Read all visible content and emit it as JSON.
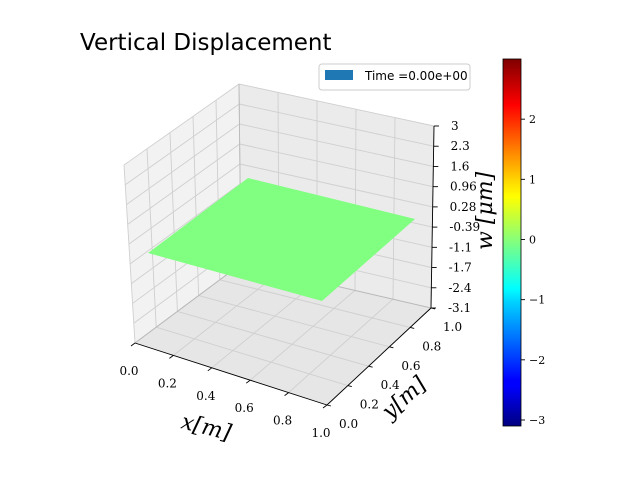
{
  "chart_data": {
    "type": "surface3d",
    "title": "Vertical Displacement",
    "xlabel": "x[m]",
    "ylabel": "y[m]",
    "zlabel": "w [μm]",
    "x_ticks": [
      "0.0",
      "0.2",
      "0.4",
      "0.6",
      "0.8",
      "1.0"
    ],
    "y_ticks": [
      "0.0",
      "0.2",
      "0.4",
      "0.6",
      "0.8",
      "1.0"
    ],
    "z_ticks": [
      "3",
      "2.3",
      "1.6",
      "0.96",
      "0.28",
      "-0.39",
      "-1.1",
      "-1.7",
      "-2.4",
      "-3.1"
    ],
    "xlim": [
      0,
      1
    ],
    "ylim": [
      0,
      1
    ],
    "zlim": [
      -3.1,
      3
    ],
    "surface_value": 0,
    "surface_color": "#80ff80",
    "legend": {
      "label": "Time =0.00e+00",
      "color": "#1f77b4",
      "placement": "upper right"
    },
    "colorbar": {
      "colormap": "jet",
      "range": [
        -3.1,
        3
      ],
      "ticks": [
        "2",
        "1",
        "0",
        "−1",
        "−2",
        "−3"
      ]
    },
    "grid": true
  }
}
